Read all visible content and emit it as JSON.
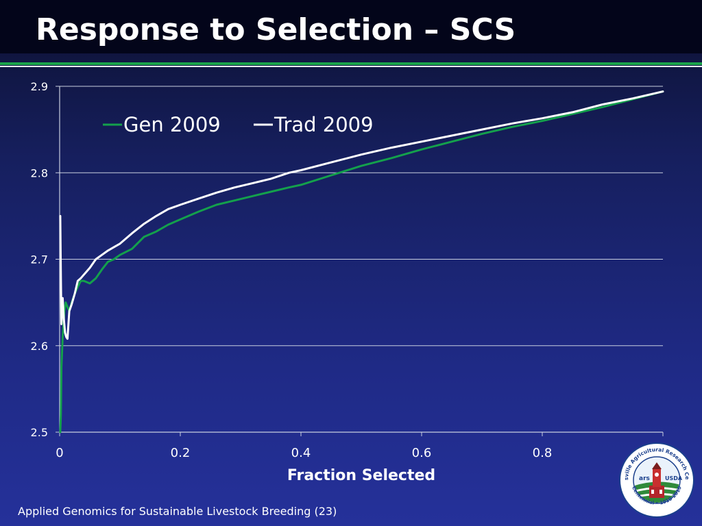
{
  "slide": {
    "title": "Response to Selection – SCS",
    "footer": "Applied Genomics for Sustainable Livestock Breeding (23)"
  },
  "logo": {
    "ring_top": "Beltsville Agricultural Research Center",
    "ring_bottom": "Centennial • 1910-2010",
    "left_mark": "ars",
    "right_mark": "USDA"
  },
  "colors": {
    "background": "#1f2a86",
    "gen": "#14a04c",
    "trad": "#ffffff",
    "gridline": "#c9cfe0",
    "accent_rule": "#1aa34a"
  },
  "chart_data": {
    "type": "line",
    "title": "",
    "xlabel": "Fraction Selected",
    "ylabel": "",
    "xlim": [
      0,
      1
    ],
    "ylim": [
      2.5,
      2.9
    ],
    "xticks": [
      0,
      0.2,
      0.4,
      0.6,
      0.8
    ],
    "yticks": [
      2.5,
      2.6,
      2.7,
      2.8,
      2.9
    ],
    "xtick_labels": [
      "0",
      "0.2",
      "0.4",
      "0.6",
      "0.8"
    ],
    "ytick_labels": [
      "2.5",
      "2.6",
      "2.7",
      "2.8",
      "2.9"
    ],
    "grid": "horizontal",
    "legend": "top-left",
    "series": [
      {
        "name": "Gen 2009",
        "color": "#14a04c",
        "x": [
          0.001,
          0.002,
          0.003,
          0.005,
          0.008,
          0.01,
          0.013,
          0.016,
          0.02,
          0.025,
          0.03,
          0.035,
          0.04,
          0.05,
          0.06,
          0.07,
          0.08,
          0.09,
          0.1,
          0.12,
          0.14,
          0.16,
          0.18,
          0.2,
          0.23,
          0.26,
          0.29,
          0.32,
          0.35,
          0.38,
          0.4,
          0.45,
          0.5,
          0.55,
          0.6,
          0.65,
          0.7,
          0.75,
          0.8,
          0.85,
          0.9,
          0.95,
          1.0
        ],
        "y": [
          2.5,
          2.52,
          2.575,
          2.61,
          2.64,
          2.65,
          2.645,
          2.64,
          2.65,
          2.66,
          2.668,
          2.675,
          2.675,
          2.672,
          2.678,
          2.688,
          2.697,
          2.7,
          2.705,
          2.712,
          2.726,
          2.732,
          2.74,
          2.746,
          2.755,
          2.763,
          2.768,
          2.773,
          2.778,
          2.783,
          2.786,
          2.797,
          2.808,
          2.817,
          2.827,
          2.836,
          2.845,
          2.853,
          2.86,
          2.868,
          2.876,
          2.885,
          2.894
        ]
      },
      {
        "name": "Trad 2009",
        "color": "#ffffff",
        "x": [
          0.001,
          0.002,
          0.003,
          0.005,
          0.007,
          0.009,
          0.011,
          0.013,
          0.016,
          0.02,
          0.025,
          0.03,
          0.035,
          0.04,
          0.05,
          0.06,
          0.07,
          0.08,
          0.09,
          0.1,
          0.12,
          0.14,
          0.16,
          0.18,
          0.2,
          0.23,
          0.26,
          0.29,
          0.32,
          0.35,
          0.38,
          0.4,
          0.45,
          0.5,
          0.55,
          0.6,
          0.65,
          0.7,
          0.75,
          0.8,
          0.85,
          0.9,
          0.95,
          1.0
        ],
        "y": [
          2.75,
          2.68,
          2.625,
          2.655,
          2.63,
          2.615,
          2.61,
          2.608,
          2.64,
          2.648,
          2.66,
          2.675,
          2.678,
          2.682,
          2.69,
          2.7,
          2.705,
          2.71,
          2.714,
          2.718,
          2.73,
          2.741,
          2.75,
          2.758,
          2.763,
          2.77,
          2.777,
          2.783,
          2.788,
          2.793,
          2.8,
          2.803,
          2.812,
          2.821,
          2.829,
          2.836,
          2.843,
          2.85,
          2.857,
          2.863,
          2.87,
          2.879,
          2.886,
          2.894
        ]
      }
    ]
  }
}
